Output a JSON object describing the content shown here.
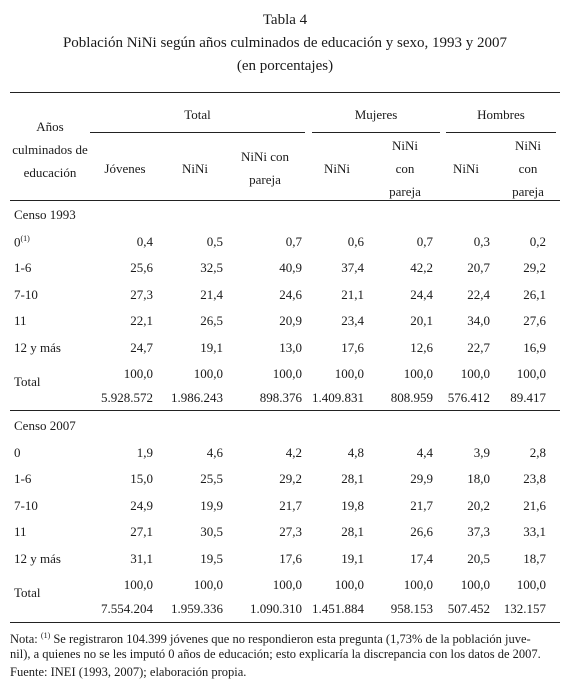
{
  "title": "Tabla 4",
  "subtitle": "Población NiNi según años culminados de educación y sexo, 1993 y 2007",
  "unit": "(en porcentajes)",
  "table": {
    "row_header": "Años culminados de educación",
    "groups": [
      "Total",
      "Mujeres",
      "Hombres"
    ],
    "columns": [
      "Jóvenes",
      "NiNi",
      "NiNi con pareja",
      "NiNi",
      "NiNi con pareja",
      "NiNi",
      "NiNi con pareja"
    ],
    "sections": [
      {
        "label": "Censo 1993",
        "rows": [
          {
            "label": "0",
            "sup": "(1)",
            "values": [
              "0,4",
              "0,5",
              "0,7",
              "0,6",
              "0,7",
              "0,3",
              "0,2"
            ]
          },
          {
            "label": "1-6",
            "values": [
              "25,6",
              "32,5",
              "40,9",
              "37,4",
              "42,2",
              "20,7",
              "29,2"
            ]
          },
          {
            "label": "7-10",
            "values": [
              "27,3",
              "21,4",
              "24,6",
              "21,1",
              "24,4",
              "22,4",
              "26,1"
            ]
          },
          {
            "label": "11",
            "values": [
              "22,1",
              "26,5",
              "20,9",
              "23,4",
              "20,1",
              "34,0",
              "27,6"
            ]
          },
          {
            "label": "12 y más",
            "values": [
              "24,7",
              "19,1",
              "13,0",
              "17,6",
              "12,6",
              "22,7",
              "16,9"
            ]
          }
        ],
        "total": {
          "label": "Total",
          "values": [
            "100,0",
            "100,0",
            "100,0",
            "100,0",
            "100,0",
            "100,0",
            "100,0"
          ],
          "counts": [
            "5.928.572",
            "1.986.243",
            "898.376",
            "1.409.831",
            "808.959",
            "576.412",
            "89.417"
          ]
        }
      },
      {
        "label": "Censo 2007",
        "rows": [
          {
            "label": "0",
            "values": [
              "1,9",
              "4,6",
              "4,2",
              "4,8",
              "4,4",
              "3,9",
              "2,8"
            ]
          },
          {
            "label": "1-6",
            "values": [
              "15,0",
              "25,5",
              "29,2",
              "28,1",
              "29,9",
              "18,0",
              "23,8"
            ]
          },
          {
            "label": "7-10",
            "values": [
              "24,9",
              "19,9",
              "21,7",
              "19,8",
              "21,7",
              "20,2",
              "21,6"
            ]
          },
          {
            "label": "11",
            "values": [
              "27,1",
              "30,5",
              "27,3",
              "28,1",
              "26,6",
              "37,3",
              "33,1"
            ]
          },
          {
            "label": "12 y más",
            "values": [
              "31,1",
              "19,5",
              "17,6",
              "19,1",
              "17,4",
              "20,5",
              "18,7"
            ]
          }
        ],
        "total": {
          "label": "Total",
          "values": [
            "100,0",
            "100,0",
            "100,0",
            "100,0",
            "100,0",
            "100,0",
            "100,0"
          ],
          "counts": [
            "7.554.204",
            "1.959.336",
            "1.090.310",
            "1.451.884",
            "958.153",
            "507.452",
            "132.157"
          ]
        }
      }
    ]
  },
  "note": {
    "label": "Nota:",
    "sup": "(1)",
    "lines": [
      "Se registraron 104.399 jóvenes que no respondieron esta pregunta (1,73% de la población juve-",
      "nil), a quienes no se les imputó 0 años de educación; esto explicaría la discrepancia con los datos de 2007."
    ],
    "source": "Fuente: INEI (1993, 2007); elaboración propia."
  }
}
